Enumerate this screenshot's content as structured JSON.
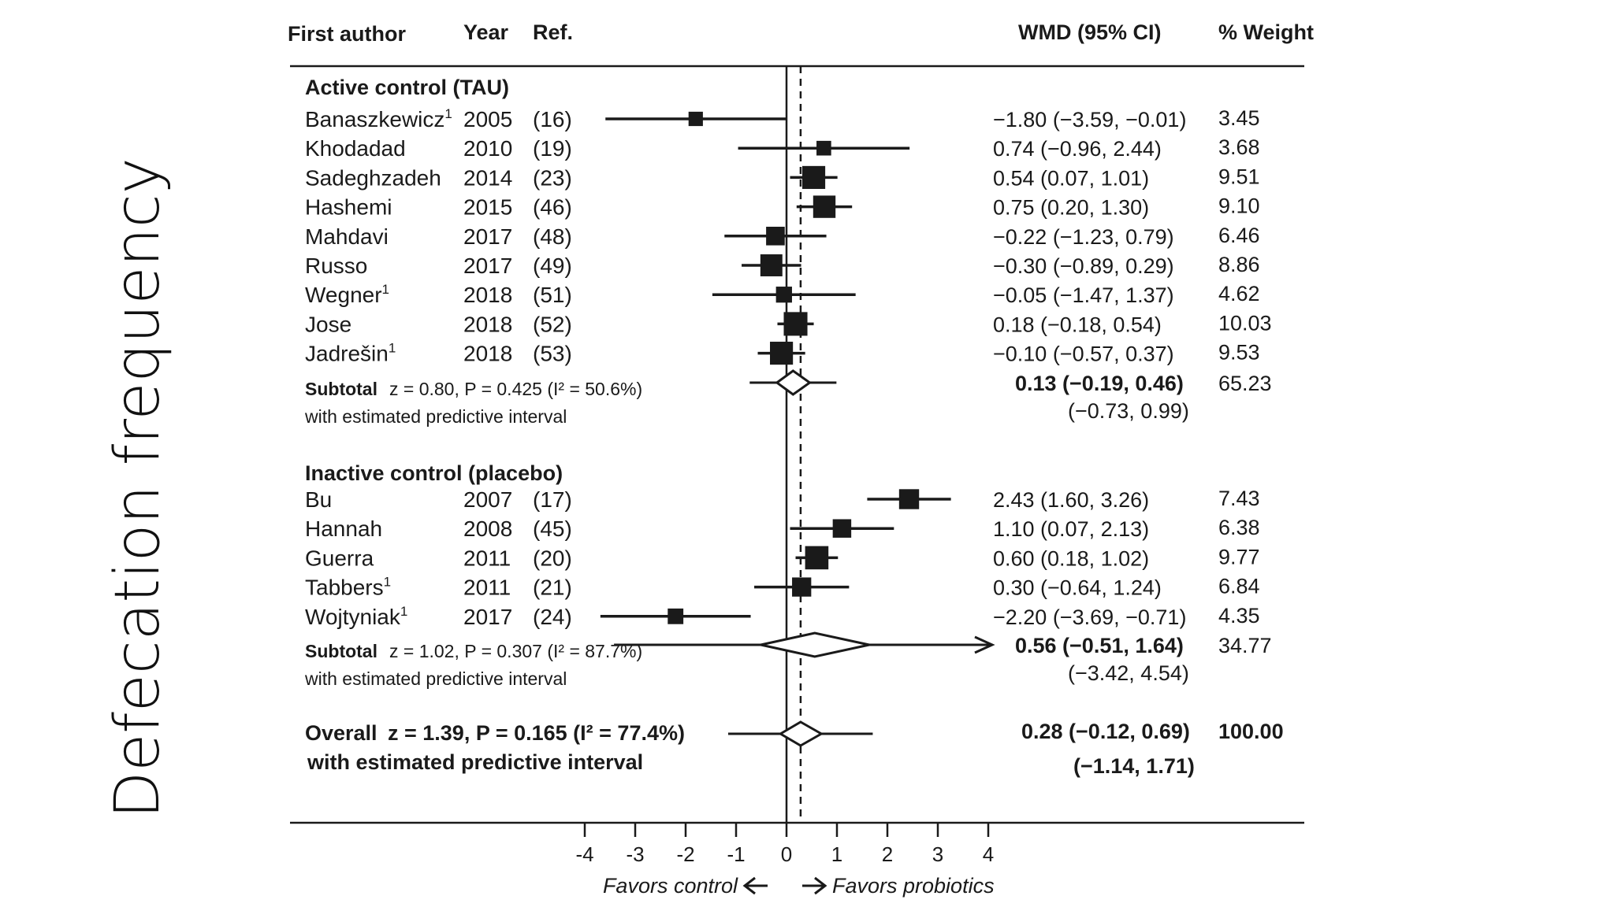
{
  "side_title": "Defecation frequency",
  "chart_data": {
    "type": "forest",
    "headers": {
      "author": "First author",
      "year": "Year",
      "ref": "Ref.",
      "effect": "WMD (95% CI)",
      "weight": "% Weight"
    },
    "xlim": [
      -4,
      4
    ],
    "xticks": [
      "-4",
      "-3",
      "-2",
      "-1",
      "0",
      "1",
      "2",
      "3",
      "4"
    ],
    "pooled_reference_line": 0.28,
    "x_favors_left": "Favors control",
    "x_favors_right": "Favors probiotics",
    "groups": [
      {
        "title": "Active control (TAU)",
        "studies": [
          {
            "author": "Banaszkewicz",
            "sup": "1",
            "year": "2005",
            "ref": "(16)",
            "wmd": -1.8,
            "lo": -3.59,
            "hi": -0.01,
            "ci_text": "−1.80 (−3.59, −0.01)",
            "weight": "3.45"
          },
          {
            "author": "Khodadad",
            "sup": "",
            "year": "2010",
            "ref": "(19)",
            "wmd": 0.74,
            "lo": -0.96,
            "hi": 2.44,
            "ci_text": "0.74 (−0.96,  2.44)",
            "weight": "3.68"
          },
          {
            "author": "Sadeghzadeh",
            "sup": "",
            "year": "2014",
            "ref": "(23)",
            "wmd": 0.54,
            "lo": 0.07,
            "hi": 1.01,
            "ci_text": "0.54  (0.07,  1.01)",
            "weight": "9.51"
          },
          {
            "author": "Hashemi",
            "sup": "",
            "year": "2015",
            "ref": "(46)",
            "wmd": 0.75,
            "lo": 0.2,
            "hi": 1.3,
            "ci_text": "0.75 (0.20,  1.30)",
            "weight": "9.10"
          },
          {
            "author": "Mahdavi",
            "sup": "",
            "year": "2017",
            "ref": "(48)",
            "wmd": -0.22,
            "lo": -1.23,
            "hi": 0.79,
            "ci_text": "−0.22 (−1.23,  0.79)",
            "weight": "6.46"
          },
          {
            "author": "Russo",
            "sup": "",
            "year": "2017",
            "ref": "(49)",
            "wmd": -0.3,
            "lo": -0.89,
            "hi": 0.29,
            "ci_text": "−0.30 (−0.89,  0.29)",
            "weight": "8.86"
          },
          {
            "author": "Wegner",
            "sup": "1",
            "year": "2018",
            "ref": "(51)",
            "wmd": -0.05,
            "lo": -1.47,
            "hi": 1.37,
            "ci_text": "−0.05 (−1.47,  1.37)",
            "weight": "4.62"
          },
          {
            "author": "Jose",
            "sup": "",
            "year": "2018",
            "ref": "(52)",
            "wmd": 0.18,
            "lo": -0.18,
            "hi": 0.54,
            "ci_text": "0.18 (−0.18,  0.54)",
            "weight": "10.03"
          },
          {
            "author": "Jadrešin",
            "sup": "1",
            "year": "2018",
            "ref": "(53)",
            "wmd": -0.1,
            "lo": -0.57,
            "hi": 0.37,
            "ci_text": "−0.10 (−0.57,  0.37)",
            "weight": "9.53"
          }
        ],
        "subtotal": {
          "label": "Subtotal",
          "stats": "z = 0.80, P = 0.425 (I² = 50.6%)",
          "pi_label": "with estimated predictive interval",
          "wmd": 0.13,
          "lo": -0.19,
          "hi": 0.46,
          "pi_lo": -0.73,
          "pi_hi": 0.99,
          "ci_text": "0.13 (−0.19,  0.46)",
          "pi_text": "(−0.73, 0.99)",
          "weight": "65.23"
        }
      },
      {
        "title": "Inactive control (placebo)",
        "studies": [
          {
            "author": "Bu",
            "sup": "",
            "year": "2007",
            "ref": "(17)",
            "wmd": 2.43,
            "lo": 1.6,
            "hi": 3.26,
            "ci_text": "2.43  (1.60,  3.26)",
            "weight": "7.43"
          },
          {
            "author": "Hannah",
            "sup": "",
            "year": "2008",
            "ref": "(45)",
            "wmd": 1.1,
            "lo": 0.07,
            "hi": 2.13,
            "ci_text": "1.10  (0.07,  2.13)",
            "weight": "6.38"
          },
          {
            "author": "Guerra",
            "sup": "",
            "year": "2011",
            "ref": "(20)",
            "wmd": 0.6,
            "lo": 0.18,
            "hi": 1.02,
            "ci_text": "0.60  (0.18,  1.02)",
            "weight": "9.77"
          },
          {
            "author": "Tabbers",
            "sup": "1",
            "year": "2011",
            "ref": "(21)",
            "wmd": 0.3,
            "lo": -0.64,
            "hi": 1.24,
            "ci_text": "0.30 (−0.64,  1.24)",
            "weight": "6.84"
          },
          {
            "author": "Wojtyniak",
            "sup": "1",
            "year": "2017",
            "ref": "(24)",
            "wmd": -2.2,
            "lo": -3.69,
            "hi": -0.71,
            "ci_text": "−2.20 (−3.69, −0.71)",
            "weight": "4.35"
          }
        ],
        "subtotal": {
          "label": "Subtotal",
          "stats": "z = 1.02, P = 0.307 (I² = 87.7%)",
          "pi_label": "with estimated predictive interval",
          "wmd": 0.56,
          "lo": -0.51,
          "hi": 1.64,
          "pi_lo": -3.42,
          "pi_hi": 4.54,
          "ci_text": "0.56 (−0.51,  1.64)",
          "pi_text": "(−3.42,  4.54)",
          "weight": "34.77"
        }
      }
    ],
    "overall": {
      "label": "Overall",
      "stats": "z = 1.39, P = 0.165 (I² = 77.4%)",
      "pi_label": "with estimated predictive interval",
      "wmd": 0.28,
      "lo": -0.12,
      "hi": 0.69,
      "pi_lo": -1.14,
      "pi_hi": 1.71,
      "ci_text": "0.28 (−0.12,  0.69)",
      "pi_text": "(−1.14, 1.71)",
      "weight": "100.00"
    }
  }
}
